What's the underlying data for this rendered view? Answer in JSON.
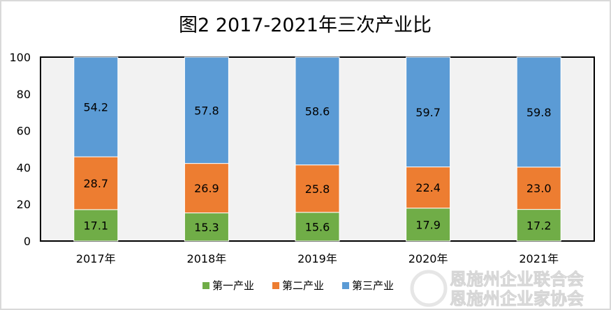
{
  "chart_data": {
    "type": "bar",
    "stacked": true,
    "title": "图2 2017-2021年三次产业比",
    "categories": [
      "2017年",
      "2018年",
      "2019年",
      "2020年",
      "2021年"
    ],
    "series": [
      {
        "name": "第一产业",
        "color": "#70ad47",
        "values": [
          17.1,
          15.3,
          15.6,
          17.9,
          17.2
        ]
      },
      {
        "name": "第二产业",
        "color": "#ed7d31",
        "values": [
          28.7,
          26.9,
          25.8,
          22.4,
          23.0
        ]
      },
      {
        "name": "第三产业",
        "color": "#5b9bd5",
        "values": [
          54.2,
          57.8,
          58.6,
          59.7,
          59.8
        ]
      }
    ],
    "ylim": [
      0,
      100
    ],
    "yticks": [
      0,
      20,
      40,
      60,
      80,
      100
    ],
    "xlabel": "",
    "ylabel": "",
    "grid": false,
    "legend": "bottom"
  },
  "watermark": {
    "line1": "恩施州企业联合会",
    "line2": "恩施州企业家协会"
  }
}
